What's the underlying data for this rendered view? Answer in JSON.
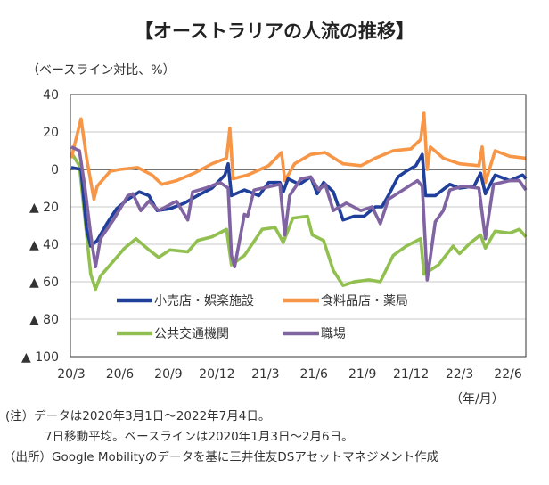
{
  "chart_data": {
    "type": "line",
    "title": "【オーストラリアの人流の推移】",
    "ylabel": "（ベースライン対比、%）",
    "xlabel": "（年/月）",
    "x_unit": "months since 2020-03-01",
    "ylim": [
      -100,
      40
    ],
    "yticks": [
      40,
      20,
      0,
      -20,
      -40,
      -60,
      -80,
      -100
    ],
    "ytick_labels": [
      "40",
      "20",
      "0",
      "▲ 20",
      "▲ 40",
      "▲ 60",
      "▲ 80",
      "▲ 100"
    ],
    "xticks": [
      0,
      3,
      6,
      9,
      12,
      15,
      18,
      21,
      24,
      27
    ],
    "xtick_labels": [
      "20/3",
      "20/6",
      "20/9",
      "20/12",
      "21/3",
      "21/6",
      "21/9",
      "21/12",
      "22/3",
      "22/6"
    ],
    "xlim": [
      0,
      28.1
    ],
    "grid": true,
    "legend_position": "bottom-left-inside",
    "series": [
      {
        "name": "小売店・娯楽施設",
        "color": "#1f3f9a",
        "points": [
          [
            0,
            1
          ],
          [
            0.6,
            0
          ],
          [
            0.95,
            -32
          ],
          [
            1.2,
            -41
          ],
          [
            1.6,
            -38
          ],
          [
            2.2,
            -29
          ],
          [
            2.8,
            -21
          ],
          [
            3.5,
            -16
          ],
          [
            4.2,
            -12
          ],
          [
            4.8,
            -14
          ],
          [
            5.3,
            -22
          ],
          [
            6.1,
            -21
          ],
          [
            7.0,
            -18
          ],
          [
            7.8,
            -14
          ],
          [
            8.7,
            -10
          ],
          [
            9.5,
            -3
          ],
          [
            9.7,
            3
          ],
          [
            9.9,
            -14
          ],
          [
            10.7,
            -11
          ],
          [
            11.6,
            -14
          ],
          [
            12.2,
            -7
          ],
          [
            12.9,
            -7
          ],
          [
            13.1,
            -12
          ],
          [
            13.4,
            -5
          ],
          [
            14.1,
            -8
          ],
          [
            14.8,
            -4
          ],
          [
            15.2,
            -13
          ],
          [
            15.6,
            -7
          ],
          [
            16.2,
            -12
          ],
          [
            16.8,
            -27
          ],
          [
            17.5,
            -25
          ],
          [
            18.1,
            -25
          ],
          [
            18.8,
            -20
          ],
          [
            19.2,
            -20
          ],
          [
            19.6,
            -14
          ],
          [
            20.2,
            -4
          ],
          [
            20.7,
            -1
          ],
          [
            21.3,
            2
          ],
          [
            21.7,
            8
          ],
          [
            21.9,
            -14
          ],
          [
            22.5,
            -14
          ],
          [
            23.4,
            -8
          ],
          [
            24.0,
            -10
          ],
          [
            24.9,
            -9
          ],
          [
            25.3,
            -2
          ],
          [
            25.6,
            -13
          ],
          [
            26.2,
            -3
          ],
          [
            27.1,
            -6
          ],
          [
            27.9,
            -3
          ],
          [
            28.1,
            -5
          ]
        ]
      },
      {
        "name": "食料品店・薬局",
        "color": "#f79646",
        "points": [
          [
            0,
            6
          ],
          [
            0.6,
            27
          ],
          [
            0.95,
            6
          ],
          [
            1.4,
            -16
          ],
          [
            1.6,
            -9
          ],
          [
            2.4,
            -1
          ],
          [
            3.0,
            0
          ],
          [
            4.1,
            1
          ],
          [
            5.0,
            -3
          ],
          [
            5.6,
            -8
          ],
          [
            6.5,
            -6
          ],
          [
            7.6,
            -2
          ],
          [
            8.7,
            3
          ],
          [
            9.6,
            6
          ],
          [
            9.8,
            22
          ],
          [
            10.0,
            -5
          ],
          [
            10.9,
            -3
          ],
          [
            12.2,
            2
          ],
          [
            13.0,
            9
          ],
          [
            13.2,
            -6
          ],
          [
            13.8,
            3
          ],
          [
            14.8,
            8
          ],
          [
            15.7,
            9
          ],
          [
            16.8,
            3
          ],
          [
            17.9,
            2
          ],
          [
            18.8,
            6
          ],
          [
            19.9,
            10
          ],
          [
            21.0,
            11
          ],
          [
            21.6,
            16
          ],
          [
            21.8,
            30
          ],
          [
            22.0,
            0
          ],
          [
            22.2,
            12
          ],
          [
            23.0,
            6
          ],
          [
            24.0,
            3
          ],
          [
            25.2,
            2
          ],
          [
            25.4,
            12
          ],
          [
            25.6,
            -7
          ],
          [
            26.2,
            10
          ],
          [
            27.1,
            7
          ],
          [
            28.1,
            6
          ]
        ]
      },
      {
        "name": "公共交通機関",
        "color": "#92c050",
        "points": [
          [
            0,
            9
          ],
          [
            0.5,
            2
          ],
          [
            0.95,
            -35
          ],
          [
            1.2,
            -56
          ],
          [
            1.5,
            -64
          ],
          [
            1.8,
            -57
          ],
          [
            2.6,
            -49
          ],
          [
            3.3,
            -42
          ],
          [
            4.0,
            -37
          ],
          [
            4.8,
            -43
          ],
          [
            5.4,
            -47
          ],
          [
            6.1,
            -43
          ],
          [
            7.2,
            -44
          ],
          [
            7.8,
            -38
          ],
          [
            8.7,
            -36
          ],
          [
            9.6,
            -32
          ],
          [
            9.9,
            -51
          ],
          [
            10.7,
            -46
          ],
          [
            11.8,
            -32
          ],
          [
            12.6,
            -31
          ],
          [
            13.1,
            -39
          ],
          [
            13.7,
            -26
          ],
          [
            14.6,
            -25
          ],
          [
            14.9,
            -35
          ],
          [
            15.6,
            -38
          ],
          [
            16.2,
            -54
          ],
          [
            16.8,
            -62
          ],
          [
            17.5,
            -60
          ],
          [
            18.4,
            -59
          ],
          [
            19.1,
            -60
          ],
          [
            19.9,
            -46
          ],
          [
            20.7,
            -41
          ],
          [
            21.6,
            -37
          ],
          [
            21.8,
            -56
          ],
          [
            22.7,
            -51
          ],
          [
            23.6,
            -41
          ],
          [
            24.0,
            -45
          ],
          [
            24.7,
            -39
          ],
          [
            25.3,
            -35
          ],
          [
            25.6,
            -42
          ],
          [
            26.2,
            -33
          ],
          [
            27.1,
            -34
          ],
          [
            27.7,
            -32
          ],
          [
            28.1,
            -36
          ]
        ]
      },
      {
        "name": "職場",
        "color": "#8064a2",
        "points": [
          [
            0,
            12
          ],
          [
            0.5,
            10
          ],
          [
            0.85,
            -10
          ],
          [
            1.2,
            -35
          ],
          [
            1.5,
            -52
          ],
          [
            1.8,
            -37
          ],
          [
            2.6,
            -27
          ],
          [
            3.5,
            -14
          ],
          [
            3.8,
            -13
          ],
          [
            4.3,
            -22
          ],
          [
            4.8,
            -17
          ],
          [
            5.4,
            -22
          ],
          [
            6.5,
            -17
          ],
          [
            7.2,
            -27
          ],
          [
            7.5,
            -12
          ],
          [
            8.3,
            -10
          ],
          [
            9.2,
            -7
          ],
          [
            9.7,
            -10
          ],
          [
            9.9,
            -46
          ],
          [
            10.1,
            -52
          ],
          [
            10.7,
            -24
          ],
          [
            10.9,
            -25
          ],
          [
            11.3,
            -11
          ],
          [
            12.9,
            -8
          ],
          [
            13.2,
            -35
          ],
          [
            13.5,
            -14
          ],
          [
            14.2,
            -5
          ],
          [
            14.8,
            -4
          ],
          [
            15.3,
            -11
          ],
          [
            15.7,
            -8
          ],
          [
            16.2,
            -22
          ],
          [
            17.0,
            -18
          ],
          [
            17.9,
            -22
          ],
          [
            18.6,
            -20
          ],
          [
            19.1,
            -29
          ],
          [
            19.6,
            -16
          ],
          [
            20.5,
            -11
          ],
          [
            21.4,
            -6
          ],
          [
            21.7,
            -9
          ],
          [
            22.0,
            -59
          ],
          [
            22.5,
            -28
          ],
          [
            23.0,
            -22
          ],
          [
            23.4,
            -11
          ],
          [
            24.2,
            -9
          ],
          [
            25.2,
            -10
          ],
          [
            25.6,
            -37
          ],
          [
            26.1,
            -8
          ],
          [
            27.1,
            -6
          ],
          [
            27.7,
            -6
          ],
          [
            28.1,
            -11
          ]
        ]
      }
    ]
  },
  "notes": [
    "(注）データは2020年3月1日～2022年7月4日。",
    "7日移動平均。ベースラインは2020年1月3日～2月6日。",
    "（出所）Google Mobilityのデータを基に三井住友DSアセットマネジメント作成"
  ]
}
